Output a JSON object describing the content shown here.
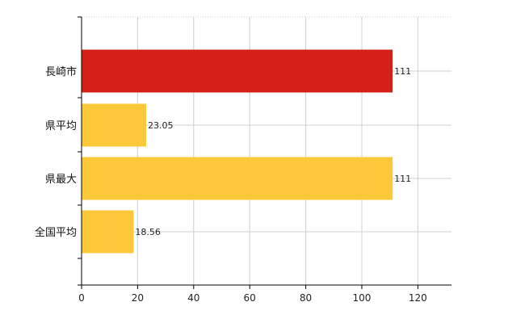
{
  "chart_data": {
    "type": "bar",
    "orientation": "horizontal",
    "categories": [
      "長崎市",
      "県平均",
      "県最大",
      "全国平均"
    ],
    "values": [
      111,
      23.05,
      111,
      18.56
    ],
    "value_labels": [
      "111",
      "23.05",
      "111",
      "18.56"
    ],
    "bar_colors": [
      "#d42016",
      "#fbc83a",
      "#fbc83a",
      "#fbc83a"
    ],
    "xlim": [
      0,
      132
    ],
    "xticks": [
      0,
      20,
      40,
      60,
      80,
      100,
      120
    ],
    "grid": true,
    "title": "",
    "xlabel": "",
    "ylabel": ""
  }
}
